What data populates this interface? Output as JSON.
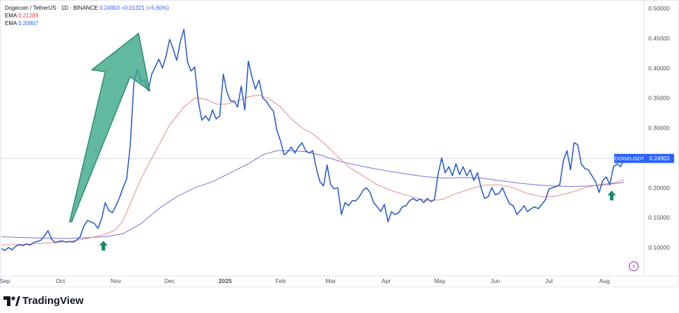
{
  "legend": {
    "symbol": "Dogecoin / TetherUS · 1D · BINANCE",
    "price": "0.24903",
    "change": "+0.01321 (+5.60%)",
    "ema1_label": "EMA",
    "ema1_value": "0.21289",
    "ema2_label": "EMA",
    "ema2_value": "0.20907"
  },
  "price_tag": {
    "label": "DOGEUSDT",
    "value": "0.24903"
  },
  "brand": "TradingView",
  "colors": {
    "price_line": "#2f5fc8",
    "ema_fast": "#e88a8a",
    "ema_slow": "#7b6fd6",
    "arrow_fill": "#3aa888",
    "arrow_stroke": "#2e8b72",
    "tag_bg": "#2962ff"
  },
  "chart_data": {
    "type": "line",
    "title": "Dogecoin / TetherUS · 1D · BINANCE",
    "y_ticks": [
      "0.50000",
      "0.45000",
      "0.40000",
      "0.35000",
      "0.30000",
      "0.25000",
      "0.20000",
      "0.15000",
      "0.10000"
    ],
    "ylim": [
      0.055,
      0.5
    ],
    "x_ticks": [
      {
        "label": "Sep",
        "t": 4
      },
      {
        "label": "Oct",
        "t": 35
      },
      {
        "label": "Nov",
        "t": 66
      },
      {
        "label": "Dec",
        "t": 96
      },
      {
        "label": "2025",
        "t": 127
      },
      {
        "label": "Feb",
        "t": 158
      },
      {
        "label": "Mar",
        "t": 186
      },
      {
        "label": "Apr",
        "t": 217
      },
      {
        "label": "May",
        "t": 247
      },
      {
        "label": "Jun",
        "t": 278
      },
      {
        "label": "Jul",
        "t": 308
      },
      {
        "label": "Aug",
        "t": 339
      }
    ],
    "xlim": [
      2,
      360
    ],
    "series": [
      {
        "name": "DOGEUSDT",
        "points": [
          [
            2,
            0.098
          ],
          [
            4,
            0.095
          ],
          [
            6,
            0.1
          ],
          [
            8,
            0.096
          ],
          [
            10,
            0.102
          ],
          [
            12,
            0.105
          ],
          [
            14,
            0.103
          ],
          [
            16,
            0.106
          ],
          [
            18,
            0.104
          ],
          [
            20,
            0.108
          ],
          [
            22,
            0.11
          ],
          [
            24,
            0.112
          ],
          [
            26,
            0.119
          ],
          [
            28,
            0.128
          ],
          [
            30,
            0.114
          ],
          [
            32,
            0.108
          ],
          [
            34,
            0.11
          ],
          [
            36,
            0.111
          ],
          [
            38,
            0.109
          ],
          [
            40,
            0.11
          ],
          [
            42,
            0.109
          ],
          [
            44,
            0.112
          ],
          [
            46,
            0.118
          ],
          [
            48,
            0.135
          ],
          [
            50,
            0.145
          ],
          [
            52,
            0.143
          ],
          [
            54,
            0.14
          ],
          [
            56,
            0.132
          ],
          [
            58,
            0.148
          ],
          [
            60,
            0.175
          ],
          [
            62,
            0.162
          ],
          [
            64,
            0.158
          ],
          [
            66,
            0.17
          ],
          [
            68,
            0.183
          ],
          [
            70,
            0.2
          ],
          [
            72,
            0.215
          ],
          [
            74,
            0.27
          ],
          [
            76,
            0.375
          ],
          [
            78,
            0.398
          ],
          [
            80,
            0.378
          ],
          [
            82,
            0.38
          ],
          [
            84,
            0.362
          ],
          [
            86,
            0.39
          ],
          [
            88,
            0.402
          ],
          [
            90,
            0.415
          ],
          [
            92,
            0.4
          ],
          [
            94,
            0.42
          ],
          [
            96,
            0.448
          ],
          [
            98,
            0.432
          ],
          [
            100,
            0.413
          ],
          [
            102,
            0.445
          ],
          [
            104,
            0.465
          ],
          [
            106,
            0.41
          ],
          [
            108,
            0.395
          ],
          [
            110,
            0.402
          ],
          [
            112,
            0.345
          ],
          [
            114,
            0.313
          ],
          [
            116,
            0.32
          ],
          [
            118,
            0.312
          ],
          [
            120,
            0.33
          ],
          [
            122,
            0.315
          ],
          [
            124,
            0.32
          ],
          [
            126,
            0.39
          ],
          [
            128,
            0.36
          ],
          [
            130,
            0.345
          ],
          [
            132,
            0.345
          ],
          [
            134,
            0.335
          ],
          [
            136,
            0.37
          ],
          [
            138,
            0.33
          ],
          [
            140,
            0.412
          ],
          [
            142,
            0.385
          ],
          [
            144,
            0.365
          ],
          [
            146,
            0.38
          ],
          [
            148,
            0.35
          ],
          [
            150,
            0.345
          ],
          [
            152,
            0.335
          ],
          [
            154,
            0.328
          ],
          [
            156,
            0.295
          ],
          [
            158,
            0.278
          ],
          [
            160,
            0.255
          ],
          [
            162,
            0.26
          ],
          [
            164,
            0.268
          ],
          [
            166,
            0.258
          ],
          [
            168,
            0.268
          ],
          [
            170,
            0.275
          ],
          [
            172,
            0.262
          ],
          [
            174,
            0.258
          ],
          [
            176,
            0.262
          ],
          [
            178,
            0.232
          ],
          [
            180,
            0.21
          ],
          [
            182,
            0.203
          ],
          [
            184,
            0.238
          ],
          [
            186,
            0.205
          ],
          [
            188,
            0.198
          ],
          [
            190,
            0.2
          ],
          [
            192,
            0.155
          ],
          [
            194,
            0.175
          ],
          [
            196,
            0.17
          ],
          [
            198,
            0.178
          ],
          [
            200,
            0.178
          ],
          [
            202,
            0.185
          ],
          [
            204,
            0.195
          ],
          [
            206,
            0.2
          ],
          [
            208,
            0.192
          ],
          [
            210,
            0.175
          ],
          [
            212,
            0.168
          ],
          [
            214,
            0.16
          ],
          [
            216,
            0.172
          ],
          [
            218,
            0.143
          ],
          [
            220,
            0.16
          ],
          [
            222,
            0.155
          ],
          [
            224,
            0.158
          ],
          [
            226,
            0.168
          ],
          [
            228,
            0.17
          ],
          [
            230,
            0.178
          ],
          [
            232,
            0.182
          ],
          [
            234,
            0.178
          ],
          [
            236,
            0.181
          ],
          [
            238,
            0.175
          ],
          [
            240,
            0.182
          ],
          [
            242,
            0.177
          ],
          [
            244,
            0.18
          ],
          [
            246,
            0.222
          ],
          [
            248,
            0.25
          ],
          [
            250,
            0.225
          ],
          [
            252,
            0.235
          ],
          [
            254,
            0.22
          ],
          [
            256,
            0.24
          ],
          [
            258,
            0.222
          ],
          [
            260,
            0.235
          ],
          [
            262,
            0.22
          ],
          [
            264,
            0.23
          ],
          [
            266,
            0.212
          ],
          [
            268,
            0.225
          ],
          [
            270,
            0.2
          ],
          [
            272,
            0.182
          ],
          [
            274,
            0.185
          ],
          [
            276,
            0.2
          ],
          [
            278,
            0.188
          ],
          [
            280,
            0.19
          ],
          [
            282,
            0.2
          ],
          [
            284,
            0.185
          ],
          [
            286,
            0.173
          ],
          [
            288,
            0.17
          ],
          [
            290,
            0.155
          ],
          [
            292,
            0.162
          ],
          [
            294,
            0.17
          ],
          [
            296,
            0.16
          ],
          [
            298,
            0.165
          ],
          [
            300,
            0.168
          ],
          [
            302,
            0.165
          ],
          [
            304,
            0.172
          ],
          [
            306,
            0.18
          ],
          [
            308,
            0.198
          ],
          [
            310,
            0.2
          ],
          [
            312,
            0.202
          ],
          [
            314,
            0.205
          ],
          [
            316,
            0.245
          ],
          [
            318,
            0.262
          ],
          [
            320,
            0.23
          ],
          [
            322,
            0.275
          ],
          [
            324,
            0.272
          ],
          [
            326,
            0.24
          ],
          [
            328,
            0.232
          ],
          [
            330,
            0.23
          ],
          [
            332,
            0.22
          ],
          [
            334,
            0.21
          ],
          [
            336,
            0.192
          ],
          [
            338,
            0.212
          ],
          [
            340,
            0.218
          ],
          [
            342,
            0.205
          ],
          [
            344,
            0.235
          ],
          [
            346,
            0.24
          ],
          [
            348,
            0.235
          ],
          [
            350,
            0.249
          ]
        ]
      },
      {
        "name": "EMA",
        "value": 0.21289,
        "points": [
          [
            2,
            0.104
          ],
          [
            20,
            0.106
          ],
          [
            40,
            0.11
          ],
          [
            50,
            0.115
          ],
          [
            60,
            0.122
          ],
          [
            66,
            0.13
          ],
          [
            70,
            0.145
          ],
          [
            75,
            0.18
          ],
          [
            80,
            0.215
          ],
          [
            88,
            0.26
          ],
          [
            96,
            0.305
          ],
          [
            104,
            0.335
          ],
          [
            110,
            0.35
          ],
          [
            116,
            0.348
          ],
          [
            122,
            0.34
          ],
          [
            128,
            0.34
          ],
          [
            134,
            0.345
          ],
          [
            140,
            0.352
          ],
          [
            146,
            0.355
          ],
          [
            152,
            0.348
          ],
          [
            158,
            0.335
          ],
          [
            164,
            0.315
          ],
          [
            170,
            0.3
          ],
          [
            176,
            0.29
          ],
          [
            182,
            0.275
          ],
          [
            190,
            0.252
          ],
          [
            196,
            0.235
          ],
          [
            204,
            0.22
          ],
          [
            212,
            0.205
          ],
          [
            220,
            0.195
          ],
          [
            230,
            0.186
          ],
          [
            240,
            0.178
          ],
          [
            248,
            0.18
          ],
          [
            256,
            0.19
          ],
          [
            264,
            0.198
          ],
          [
            272,
            0.204
          ],
          [
            280,
            0.205
          ],
          [
            288,
            0.2
          ],
          [
            296,
            0.19
          ],
          [
            304,
            0.185
          ],
          [
            312,
            0.186
          ],
          [
            320,
            0.192
          ],
          [
            328,
            0.2
          ],
          [
            336,
            0.205
          ],
          [
            344,
            0.208
          ],
          [
            350,
            0.213
          ]
        ]
      },
      {
        "name": "EMA",
        "value": 0.20907,
        "points": [
          [
            2,
            0.118
          ],
          [
            20,
            0.116
          ],
          [
            40,
            0.115
          ],
          [
            60,
            0.118
          ],
          [
            70,
            0.123
          ],
          [
            80,
            0.14
          ],
          [
            90,
            0.165
          ],
          [
            100,
            0.185
          ],
          [
            110,
            0.2
          ],
          [
            120,
            0.21
          ],
          [
            130,
            0.225
          ],
          [
            140,
            0.24
          ],
          [
            148,
            0.255
          ],
          [
            156,
            0.262
          ],
          [
            164,
            0.262
          ],
          [
            172,
            0.26
          ],
          [
            180,
            0.255
          ],
          [
            190,
            0.245
          ],
          [
            200,
            0.238
          ],
          [
            210,
            0.232
          ],
          [
            220,
            0.227
          ],
          [
            230,
            0.222
          ],
          [
            240,
            0.218
          ],
          [
            250,
            0.216
          ],
          [
            260,
            0.217
          ],
          [
            270,
            0.216
          ],
          [
            280,
            0.212
          ],
          [
            290,
            0.208
          ],
          [
            300,
            0.205
          ],
          [
            310,
            0.203
          ],
          [
            320,
            0.202
          ],
          [
            330,
            0.203
          ],
          [
            340,
            0.205
          ],
          [
            350,
            0.209
          ]
        ]
      }
    ],
    "annotations": [
      {
        "kind": "big-up-arrow"
      },
      {
        "kind": "small-up-arrow",
        "t": 59,
        "y": 0.103
      },
      {
        "kind": "small-up-arrow",
        "t": 343,
        "y": 0.187
      }
    ]
  }
}
